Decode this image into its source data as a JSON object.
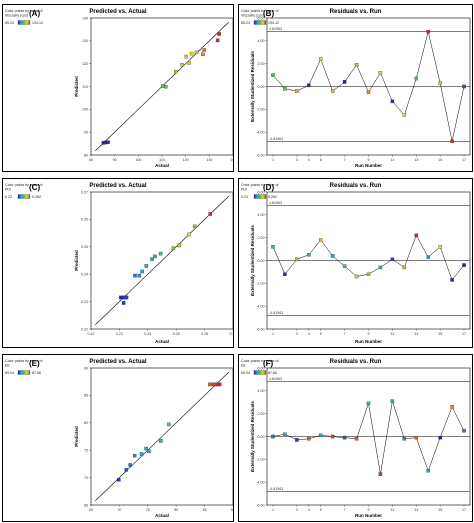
{
  "panels": [
    {
      "id": "A",
      "label": "(A)",
      "color_legend": {
        "title_lines": [
          "Color points by value of",
          "Viscosity (cps)"
        ],
        "min": "85.24",
        "max": "134.12"
      },
      "chart_data": {
        "type": "scatter",
        "title": "Predicted vs. Actual",
        "xlabel": "Actual",
        "ylabel": "Predicted",
        "xlim": [
          80,
          140
        ],
        "ylim": [
          80,
          140
        ],
        "xticks": [
          "80",
          "90",
          "100",
          "110",
          "120",
          "130",
          "140"
        ],
        "yticks": [
          "80",
          "90",
          "100",
          "110",
          "120",
          "130",
          "140"
        ],
        "reference_line": "y=x",
        "color_min": 85.24,
        "color_max": 134.12,
        "points": [
          {
            "x": 85.24,
            "y": 85.3
          },
          {
            "x": 86.5,
            "y": 85.5
          },
          {
            "x": 87.2,
            "y": 85.6
          },
          {
            "x": 110.4,
            "y": 110.2
          },
          {
            "x": 111.6,
            "y": 109.9
          },
          {
            "x": 115.8,
            "y": 116.5
          },
          {
            "x": 118.5,
            "y": 119.5
          },
          {
            "x": 120.2,
            "y": 123.1
          },
          {
            "x": 121.4,
            "y": 120.3
          },
          {
            "x": 122.5,
            "y": 124.4
          },
          {
            "x": 124.6,
            "y": 125.0
          },
          {
            "x": 127.3,
            "y": 124.1
          },
          {
            "x": 127.9,
            "y": 126.0
          },
          {
            "x": 134.12,
            "y": 133.0
          },
          {
            "x": 133.5,
            "y": 130.2
          }
        ]
      }
    },
    {
      "id": "B",
      "label": "(B)",
      "color_legend": {
        "title_lines": [
          "Color points by value of",
          "Viscosity (cps)"
        ],
        "min": "85.24",
        "max": "134.12"
      },
      "chart_data": {
        "type": "line",
        "title": "Residuals vs. Run",
        "xlabel": "Run Number",
        "ylabel": "Externally Studentized Residuals",
        "xlim": [
          0.5,
          17.5
        ],
        "ylim": [
          -6,
          6
        ],
        "xticks": [
          "1",
          "3",
          "4",
          "5",
          "7",
          "9",
          "11",
          "13",
          "15",
          "17"
        ],
        "xtick_values": [
          1,
          3,
          4,
          5,
          7,
          9,
          11,
          13,
          15,
          17
        ],
        "yticks": [
          "6.00",
          "4.00",
          "2.00",
          "0.00",
          "-2.00",
          "-4.00",
          "-6.00"
        ],
        "limit_lines": [
          {
            "value": 4.81963,
            "label": "4.81963"
          },
          {
            "value": -4.81963,
            "label": "-4.81963"
          }
        ],
        "color_min": 85.24,
        "color_max": 134.12,
        "x": [
          1,
          2,
          3,
          4,
          5,
          6,
          7,
          8,
          9,
          10,
          11,
          12,
          13,
          14,
          15,
          16,
          17
        ],
        "y": [
          1.0,
          -0.2,
          -0.4,
          0.1,
          2.4,
          -0.4,
          0.4,
          1.9,
          -0.5,
          1.2,
          -1.3,
          -2.5,
          0.7,
          4.8,
          0.3,
          -4.8,
          0.0
        ],
        "c": [
          110,
          112,
          125,
          86,
          120,
          124,
          85,
          116,
          127,
          120,
          87,
          122,
          111,
          134,
          118,
          133,
          90
        ]
      }
    },
    {
      "id": "C",
      "label": "(C)",
      "color_legend": {
        "title_lines": [
          "Color points by value of",
          "PDI"
        ],
        "min": "0.23",
        "max": "0.262"
      },
      "chart_data": {
        "type": "scatter",
        "title": "Predicted vs. Actual",
        "xlabel": "Actual",
        "ylabel": "Predicted",
        "xlim": [
          0.22,
          0.27
        ],
        "ylim": [
          0.22,
          0.27
        ],
        "xticks": [
          "0.22",
          "0.23",
          "0.24",
          "0.25",
          "0.26",
          "0.27"
        ],
        "yticks": [
          "0.22",
          "0.23",
          "0.24",
          "0.25",
          "0.26",
          "0.27"
        ],
        "reference_line": "y=x",
        "color_min": 0.23,
        "color_max": 0.262,
        "points": [
          {
            "x": 0.2305,
            "y": 0.2315
          },
          {
            "x": 0.2315,
            "y": 0.2315
          },
          {
            "x": 0.232,
            "y": 0.2315
          },
          {
            "x": 0.2325,
            "y": 0.2315
          },
          {
            "x": 0.2315,
            "y": 0.2295
          },
          {
            "x": 0.2355,
            "y": 0.2395
          },
          {
            "x": 0.237,
            "y": 0.2395
          },
          {
            "x": 0.238,
            "y": 0.241
          },
          {
            "x": 0.2395,
            "y": 0.243
          },
          {
            "x": 0.2415,
            "y": 0.2455
          },
          {
            "x": 0.2425,
            "y": 0.2465
          },
          {
            "x": 0.2445,
            "y": 0.2475
          },
          {
            "x": 0.249,
            "y": 0.2495
          },
          {
            "x": 0.251,
            "y": 0.2505
          },
          {
            "x": 0.2545,
            "y": 0.2545
          },
          {
            "x": 0.2565,
            "y": 0.2575
          },
          {
            "x": 0.262,
            "y": 0.262
          }
        ]
      }
    },
    {
      "id": "D",
      "label": "(D)",
      "color_legend": {
        "title_lines": [
          "Color points by value of",
          "PDI"
        ],
        "min": "0.23",
        "max": "0.262"
      },
      "chart_data": {
        "type": "line",
        "title": "Residuals vs. Run",
        "xlabel": "Run Number",
        "ylabel": "Externally Studentized Residuals",
        "xlim": [
          0.5,
          17.5
        ],
        "ylim": [
          -6,
          6
        ],
        "xticks": [
          "1",
          "3",
          "4",
          "5",
          "7",
          "9",
          "11",
          "13",
          "15",
          "17"
        ],
        "xtick_values": [
          1,
          3,
          4,
          5,
          7,
          9,
          11,
          13,
          15,
          17
        ],
        "yticks": [
          "6.00",
          "4.00",
          "2.00",
          "0.00",
          "-2.00",
          "-4.00",
          "-6.00"
        ],
        "limit_lines": [
          {
            "value": 4.81963,
            "label": "4.81963"
          },
          {
            "value": -4.81963,
            "label": "-4.81963"
          }
        ],
        "color_min": 0.23,
        "color_max": 0.262,
        "x": [
          1,
          2,
          3,
          4,
          5,
          6,
          7,
          8,
          9,
          10,
          11,
          12,
          13,
          14,
          15,
          16,
          17
        ],
        "y": [
          1.2,
          -1.2,
          0.1,
          0.5,
          1.8,
          0.4,
          -0.5,
          -1.4,
          -1.2,
          -0.6,
          0.1,
          -0.6,
          2.2,
          0.3,
          1.2,
          -1.7,
          -0.4
        ],
        "c": [
          0.245,
          0.231,
          0.25,
          0.24,
          0.255,
          0.238,
          0.243,
          0.252,
          0.249,
          0.24,
          0.232,
          0.256,
          0.262,
          0.237,
          0.254,
          0.231,
          0.23
        ]
      }
    },
    {
      "id": "E",
      "label": "(E)",
      "color_legend": {
        "title_lines": [
          "Color points by value of",
          "EE"
        ],
        "min": "69.04",
        "max": "87.66"
      },
      "chart_data": {
        "type": "scatter",
        "title": "Predicted vs. Actual",
        "xlabel": "Actual",
        "ylabel": "Predicted",
        "xlim": [
          65,
          90
        ],
        "ylim": [
          65,
          90
        ],
        "xticks": [
          "65",
          "70",
          "75",
          "80",
          "85",
          "90"
        ],
        "yticks": [
          "65",
          "70",
          "75",
          "80",
          "85",
          "90"
        ],
        "reference_line": "y=x",
        "color_min": 69.04,
        "color_max": 87.66,
        "points": [
          {
            "x": 69.9,
            "y": 69.6
          },
          {
            "x": 71.2,
            "y": 71.4
          },
          {
            "x": 71.9,
            "y": 72.3
          },
          {
            "x": 72.7,
            "y": 74.0
          },
          {
            "x": 73.9,
            "y": 74.3
          },
          {
            "x": 74.7,
            "y": 75.3
          },
          {
            "x": 75.2,
            "y": 74.8
          },
          {
            "x": 77.3,
            "y": 76.7
          },
          {
            "x": 78.7,
            "y": 79.7
          },
          {
            "x": 85.9,
            "y": 87.0
          },
          {
            "x": 86.5,
            "y": 87.0
          },
          {
            "x": 86.9,
            "y": 87.0
          },
          {
            "x": 87.3,
            "y": 87.0
          },
          {
            "x": 87.66,
            "y": 87.0
          }
        ]
      }
    },
    {
      "id": "F",
      "label": "(F)",
      "color_legend": {
        "title_lines": [
          "Color points by value of",
          "EE"
        ],
        "min": "69.04",
        "max": "87.66"
      },
      "chart_data": {
        "type": "line",
        "title": "Residuals vs. Run",
        "xlabel": "Run Number",
        "ylabel": "Externally Studentized Residuals",
        "xlim": [
          0.5,
          17.5
        ],
        "ylim": [
          -6,
          6
        ],
        "xticks": [
          "1",
          "3",
          "4",
          "5",
          "7",
          "9",
          "11",
          "13",
          "15",
          "17"
        ],
        "xtick_values": [
          1,
          3,
          4,
          5,
          7,
          9,
          11,
          13,
          15,
          17
        ],
        "yticks": [
          "6.00",
          "4.00",
          "2.00",
          "0.00",
          "-2.00",
          "-4.00",
          "-6.00"
        ],
        "limit_lines": [
          {
            "value": 4.81963,
            "label": "4.81963"
          },
          {
            "value": -4.81963,
            "label": "-4.81963"
          }
        ],
        "color_min": 69.04,
        "color_max": 87.66,
        "x": [
          1,
          2,
          3,
          4,
          5,
          6,
          7,
          8,
          9,
          10,
          11,
          12,
          13,
          14,
          15,
          16,
          17
        ],
        "y": [
          0.0,
          0.2,
          -0.3,
          -0.2,
          0.1,
          0.0,
          -0.1,
          -0.2,
          2.9,
          -3.3,
          3.1,
          -0.2,
          -0.1,
          -3.0,
          -0.1,
          2.6,
          0.5
        ],
        "c": [
          72,
          75,
          70,
          86,
          74,
          87,
          71,
          86,
          78,
          87,
          76,
          73,
          86,
          74,
          69,
          85,
          72
        ]
      }
    }
  ]
}
